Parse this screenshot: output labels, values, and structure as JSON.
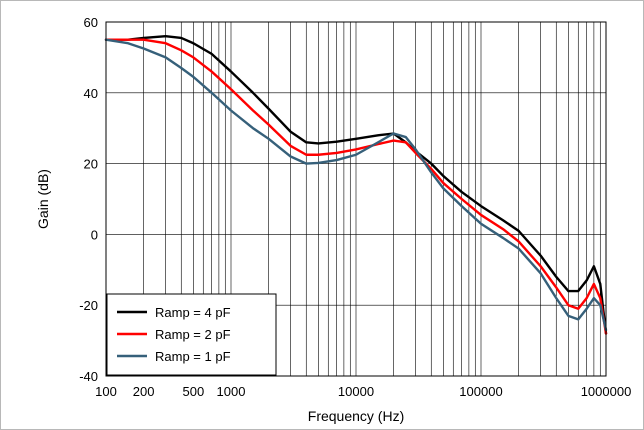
{
  "chart_data": {
    "type": "line",
    "title": "",
    "xlabel": "Frequency (Hz)",
    "ylabel": "Gain (dB)",
    "xscale": "log",
    "xlim": [
      100,
      1000000
    ],
    "ylim": [
      -40,
      60
    ],
    "x_ticks": [
      100,
      200,
      500,
      1000,
      10000,
      100000,
      1000000
    ],
    "x_tick_labels": [
      "100",
      "200",
      "500",
      "1000",
      "10000",
      "100000",
      "1000000"
    ],
    "y_ticks": [
      -40,
      -20,
      0,
      20,
      40,
      60
    ],
    "y_tick_labels": [
      "-40",
      "-20",
      "0",
      "20",
      "40",
      "60"
    ],
    "grid": true,
    "legend_position": "bottom-left",
    "series": [
      {
        "name": "Ramp = 4 pF",
        "color": "#000000",
        "x": [
          100,
          150,
          200,
          300,
          400,
          500,
          700,
          1000,
          1500,
          2000,
          3000,
          4000,
          5000,
          7000,
          10000,
          15000,
          20000,
          25000,
          30000,
          40000,
          50000,
          70000,
          100000,
          150000,
          200000,
          300000,
          400000,
          500000,
          600000,
          700000,
          800000,
          900000,
          1000000
        ],
        "y": [
          55,
          55,
          55.5,
          56,
          55.5,
          54,
          51,
          46,
          40,
          35.5,
          29,
          26,
          25.7,
          26.2,
          27,
          28,
          28.5,
          26,
          23.5,
          20,
          16.5,
          12,
          8,
          4,
          1,
          -6,
          -12,
          -16,
          -16,
          -13,
          -9,
          -14,
          -28
        ]
      },
      {
        "name": "Ramp = 2 pF",
        "color": "#ff0000",
        "x": [
          100,
          150,
          200,
          300,
          400,
          500,
          700,
          1000,
          1500,
          2000,
          3000,
          4000,
          5000,
          7000,
          10000,
          15000,
          20000,
          25000,
          30000,
          40000,
          50000,
          70000,
          100000,
          150000,
          200000,
          300000,
          400000,
          500000,
          600000,
          700000,
          800000,
          900000,
          1000000
        ],
        "y": [
          55,
          55,
          55,
          54,
          52,
          50,
          46,
          41,
          35,
          31,
          25,
          22.5,
          22.5,
          23,
          24,
          25.5,
          26.5,
          26,
          23,
          18.5,
          14.5,
          10,
          5.5,
          1.5,
          -2,
          -9,
          -15,
          -20,
          -21,
          -18,
          -14,
          -18,
          -28
        ]
      },
      {
        "name": "Ramp = 1 pF",
        "color": "#36607a",
        "x": [
          100,
          150,
          200,
          300,
          400,
          500,
          700,
          1000,
          1500,
          2000,
          3000,
          4000,
          5000,
          7000,
          10000,
          15000,
          20000,
          25000,
          30000,
          40000,
          50000,
          70000,
          100000,
          150000,
          200000,
          300000,
          400000,
          500000,
          600000,
          700000,
          800000,
          900000,
          1000000
        ],
        "y": [
          55,
          54,
          52.5,
          50,
          47,
          44.5,
          40,
          35,
          30,
          27,
          22,
          20,
          20.2,
          21,
          22.5,
          26,
          28.5,
          27.5,
          24,
          17.5,
          13,
          8,
          3,
          -1,
          -4,
          -11,
          -18,
          -23,
          -24,
          -21,
          -18,
          -20,
          -27
        ]
      }
    ]
  }
}
